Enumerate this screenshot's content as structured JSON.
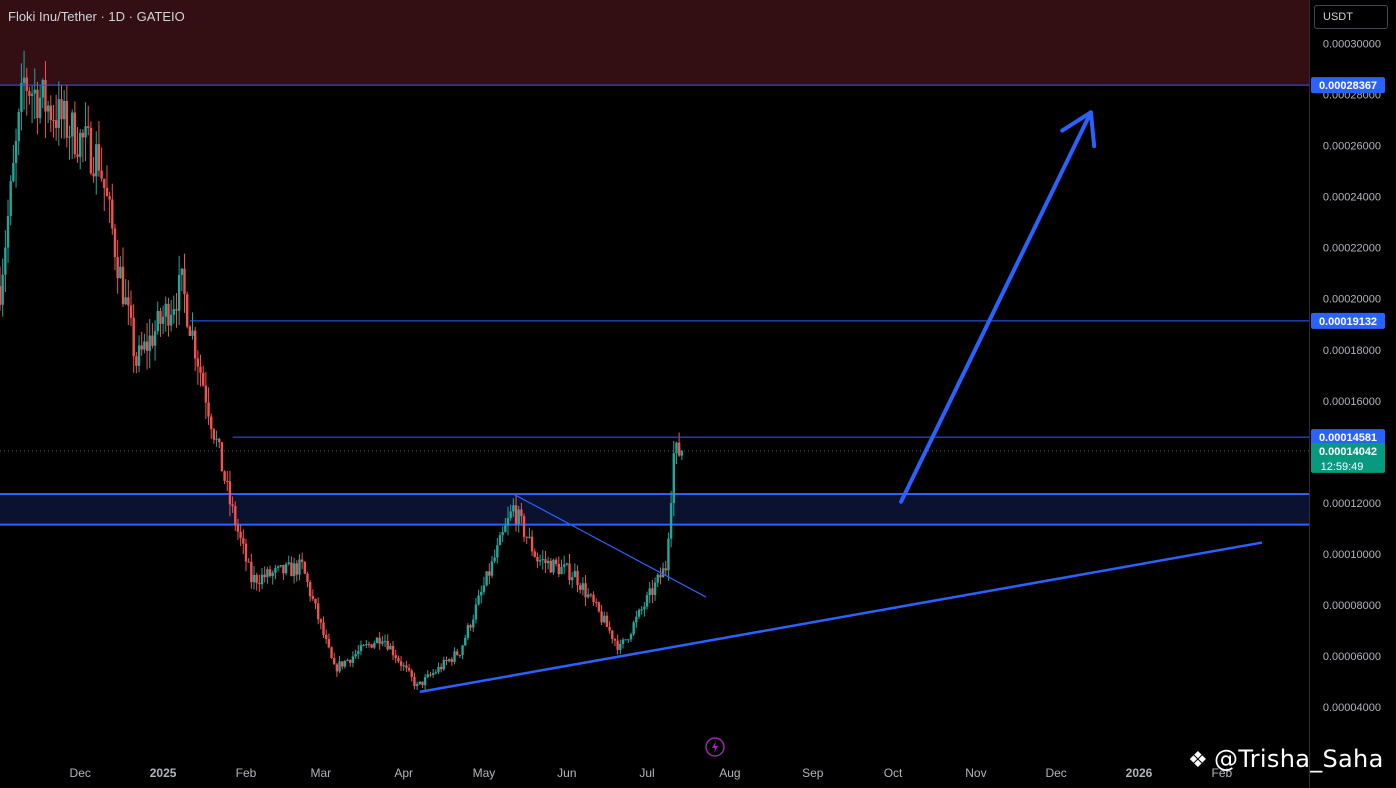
{
  "header": {
    "symbol_title": "Floki Inu/Tether · 1D · GATEIO",
    "currency": "USDT"
  },
  "watermark": {
    "icon": "binance-logo-icon",
    "text": "@Trisha_Saha"
  },
  "colors": {
    "up": "#26a69a",
    "down": "#ef5350",
    "line": "#2962ff",
    "zone_fill": "#0b1230",
    "top_zone_fill": "#330f14",
    "axis_text": "#b2b5be",
    "price_label_bg": "#2962ff",
    "current_label_bg": "#089981"
  },
  "chart_data": {
    "type": "candlestick",
    "y_axis": {
      "min": 3.5e-05,
      "max": 0.000317,
      "ticks": [
        "0.00030000",
        "0.00028000",
        "0.00026000",
        "0.00024000",
        "0.00022000",
        "0.00020000",
        "0.00018000",
        "0.00016000",
        "0.00014000",
        "0.00012000",
        "0.00010000",
        "0.00008000",
        "0.00006000",
        "0.00004000"
      ]
    },
    "x_axis": {
      "labels": [
        "Dec",
        "2025",
        "Feb",
        "Mar",
        "Apr",
        "May",
        "Jun",
        "Jul",
        "Aug",
        "Sep",
        "Oct",
        "Nov",
        "Dec",
        "2026",
        "Feb"
      ]
    },
    "price_labels": [
      {
        "value": 0.00028367,
        "text": "0.00028367",
        "kind": "level"
      },
      {
        "value": 0.00019132,
        "text": "0.00019132",
        "kind": "level"
      },
      {
        "value": 0.00014581,
        "text": "0.00014581",
        "kind": "level"
      },
      {
        "value": 0.00014042,
        "text": "0.00014042",
        "kind": "current",
        "countdown": "12:59:49"
      }
    ],
    "zones": [
      {
        "name": "resistance-zone-top",
        "from": 0.00028367,
        "to": 0.000317
      },
      {
        "name": "support-zone",
        "from": 0.0001115,
        "to": 0.0001235
      }
    ],
    "anchors": [
      {
        "date": "2024-11-01",
        "price": 0.000205
      },
      {
        "date": "2024-11-10",
        "price": 0.000285
      },
      {
        "date": "2024-12-08",
        "price": 0.000255
      },
      {
        "date": "2024-12-22",
        "price": 0.000175
      },
      {
        "date": "2025-01-08",
        "price": 0.000205
      },
      {
        "date": "2025-01-26",
        "price": 0.00012
      },
      {
        "date": "2025-02-03",
        "price": 9e-05
      },
      {
        "date": "2025-02-22",
        "price": 9.5e-05
      },
      {
        "date": "2025-03-06",
        "price": 5.5e-05
      },
      {
        "date": "2025-03-24",
        "price": 6.8e-05
      },
      {
        "date": "2025-04-06",
        "price": 4.8e-05
      },
      {
        "date": "2025-04-22",
        "price": 6.2e-05
      },
      {
        "date": "2025-05-12",
        "price": 0.000118
      },
      {
        "date": "2025-05-21",
        "price": 9.8e-05
      },
      {
        "date": "2025-06-04",
        "price": 9.2e-05
      },
      {
        "date": "2025-06-21",
        "price": 6.3e-05
      },
      {
        "date": "2025-07-08",
        "price": 9.5e-05
      },
      {
        "date": "2025-07-11",
        "price": 0.000139
      },
      {
        "date": "2025-07-14",
        "price": 0.0001404
      }
    ],
    "lines": [
      {
        "name": "level-line-top",
        "type": "horizontal",
        "price": 0.00028367,
        "from": "2024-11-01",
        "to": "end"
      },
      {
        "name": "level-line-mid",
        "type": "horizontal",
        "price": 0.00019132,
        "from": "2025-01-11",
        "to": "end"
      },
      {
        "name": "level-line-low",
        "type": "horizontal",
        "price": 0.00014581,
        "from": "2025-01-27",
        "to": "end"
      },
      {
        "name": "descending-trendline",
        "type": "segment",
        "p1": {
          "date": "2025-05-12",
          "price": 0.0001235
        },
        "p2": {
          "date": "2025-07-23",
          "price": 8.32e-05
        }
      },
      {
        "name": "ascending-trendline",
        "type": "segment",
        "p1": {
          "date": "2025-04-07",
          "price": 4.6e-05
        },
        "p2": {
          "date": "2026-02-16",
          "price": 0.0001045
        }
      }
    ],
    "projection_arrow": {
      "from": {
        "date": "2025-10-04",
        "price": 0.0001205
      },
      "to": {
        "date": "2025-12-14",
        "price": 0.000273
      }
    }
  }
}
